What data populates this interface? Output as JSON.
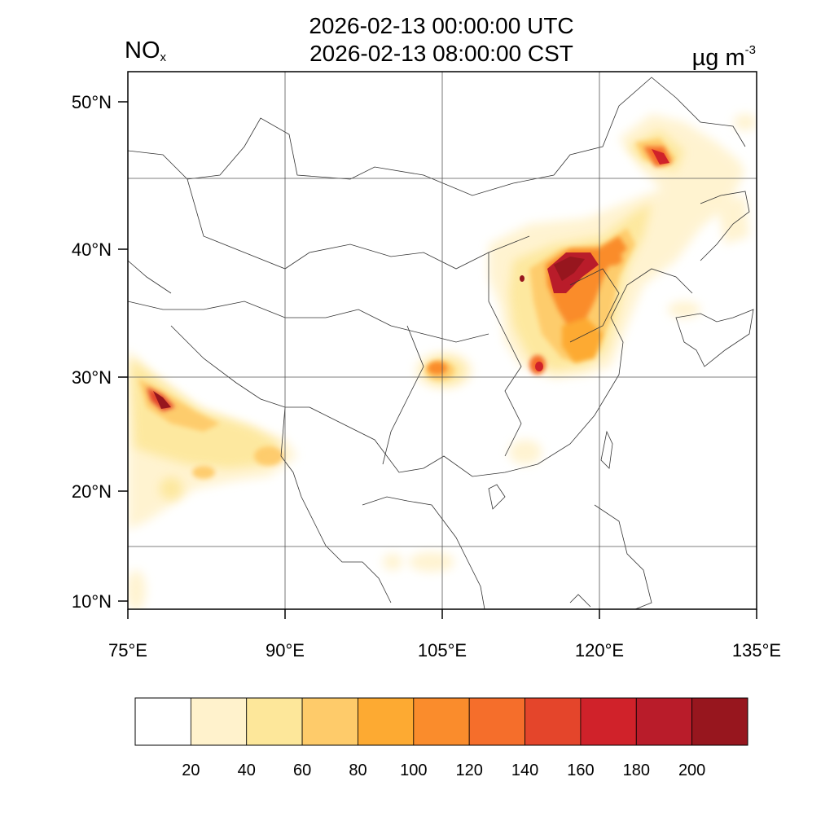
{
  "header": {
    "title_utc": "2026-02-13 00:00:00 UTC",
    "title_local": "2026-02-13 08:00:00 CST",
    "variable": "NO",
    "variable_sub": "x",
    "unit": "µg m",
    "unit_sup": "-3"
  },
  "axes": {
    "lat_labels": [
      {
        "lat": 50,
        "label": "50°N"
      },
      {
        "lat": 40,
        "label": "40°N"
      },
      {
        "lat": 30,
        "label": "30°N"
      },
      {
        "lat": 20,
        "label": "20°N"
      },
      {
        "lat": 10,
        "label": "10°N"
      }
    ],
    "lon_labels": [
      {
        "lon": 75,
        "label": "75°E"
      },
      {
        "lon": 90,
        "label": "90°E"
      },
      {
        "lon": 105,
        "label": "105°E"
      },
      {
        "lon": 120,
        "label": "120°E"
      },
      {
        "lon": 135,
        "label": "135°E"
      }
    ],
    "lon_range": [
      75,
      135
    ],
    "lat_range": [
      9,
      52
    ]
  },
  "colorbar": {
    "levels": [
      "20",
      "40",
      "60",
      "80",
      "100",
      "120",
      "140",
      "160",
      "180",
      "200"
    ],
    "colors": [
      "#ffffff",
      "#fff2cc",
      "#fde79a",
      "#fecb6a",
      "#fdaa32",
      "#fa8c2c",
      "#f56e2b",
      "#e4452b",
      "#d0222a",
      "#b91c2a",
      "#97161e"
    ]
  }
}
